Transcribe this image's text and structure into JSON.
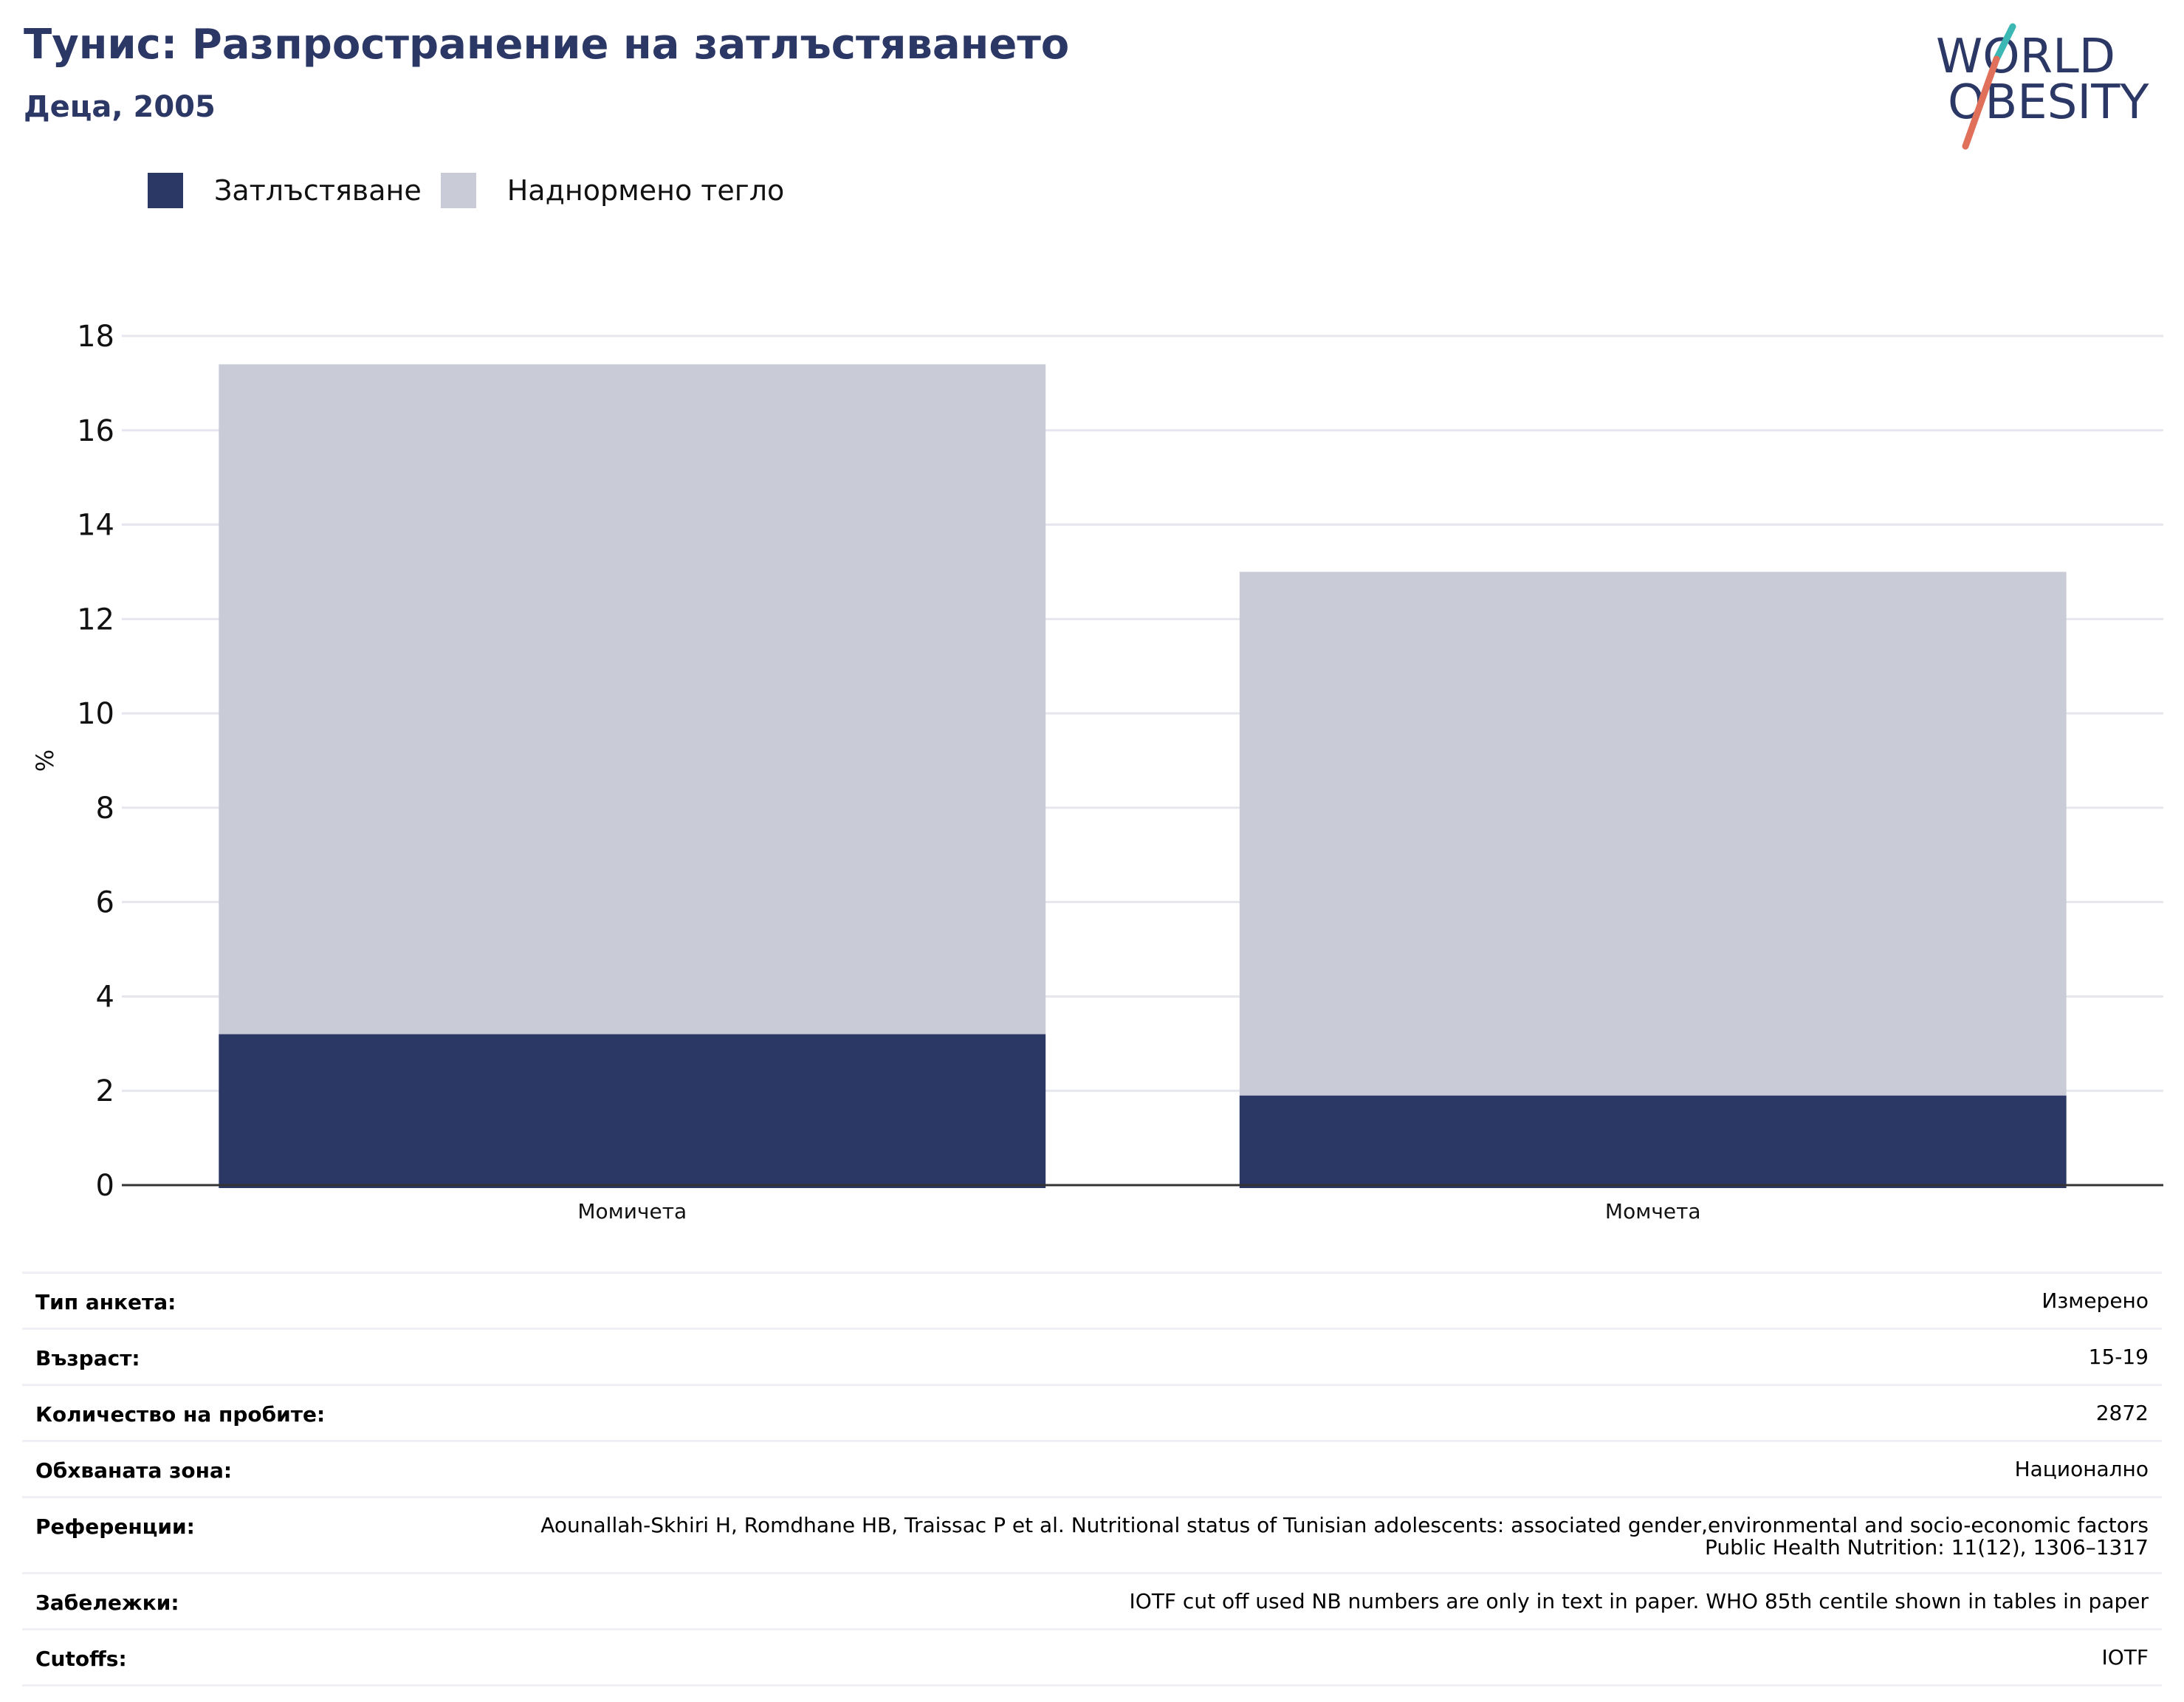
{
  "header": {
    "title": "Тунис: Разпространение на затлъстяването",
    "subtitle": "Деца, 2005"
  },
  "logo": {
    "line1": "WORLD",
    "line2": "OBESITY",
    "colors": {
      "text": "#2b3765",
      "slash_teal": "#3bb8b3",
      "slash_coral": "#e0705a"
    }
  },
  "colors": {
    "obesity": "#2b3765",
    "overweight": "#c9cbd7",
    "grid": "#e6e7ee",
    "axis": "#333333"
  },
  "chart_data": {
    "type": "bar",
    "stacked": true,
    "categories": [
      "Момичета",
      "Момчета"
    ],
    "series": [
      {
        "name": "Затлъстяване",
        "values": [
          3.2,
          1.9
        ],
        "color": "#2b3765"
      },
      {
        "name": "Наднормено тегло",
        "values": [
          14.2,
          11.1
        ],
        "color": "#c9cbd7"
      }
    ],
    "ylabel": "%",
    "ylim": [
      0,
      18
    ],
    "yticks": [
      0,
      2,
      4,
      6,
      8,
      10,
      12,
      14,
      16,
      18
    ],
    "grid": true,
    "legend": "top-left"
  },
  "info": [
    {
      "label": "Тип анкета:",
      "value": "Измерено"
    },
    {
      "label": "Възраст:",
      "value": "15-19"
    },
    {
      "label": "Количество на пробите:",
      "value": "2872"
    },
    {
      "label": "Обхваната зона:",
      "value": "Национално"
    },
    {
      "label": "Референции:",
      "value": "Aounallah-Skhiri H, Romdhane HB, Traissac P et al. Nutritional status of Tunisian adolescents: associated gender,environmental and socio-economic factors Public Health Nutrition: 11(12), 1306–1317"
    },
    {
      "label": "Забележки:",
      "value": "IOTF cut off used NB numbers are only in text in paper. WHO 85th centile shown in tables in paper"
    },
    {
      "label": "Cutoffs:",
      "value": "IOTF"
    }
  ]
}
